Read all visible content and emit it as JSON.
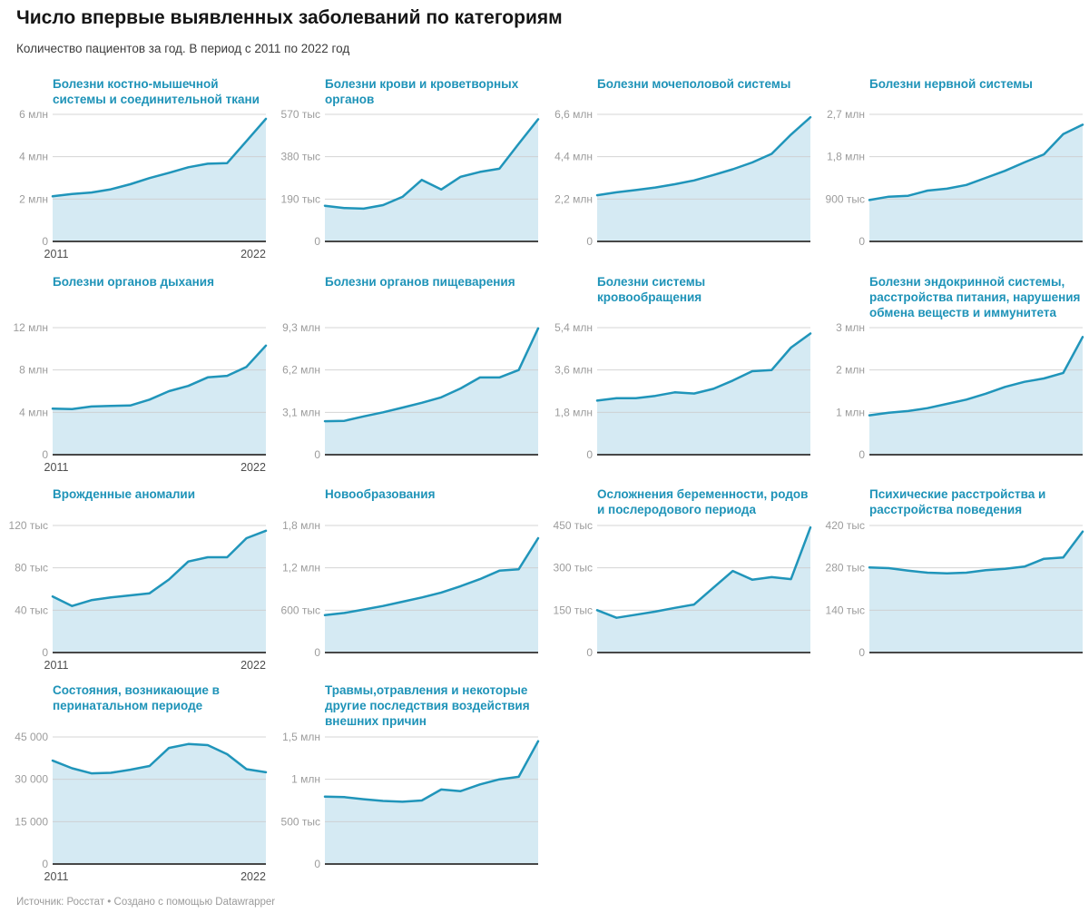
{
  "header": {
    "title": "Число впервые выявленных заболеваний по категориям",
    "subtitle": "Количество пациентов за год. В период с 2011 по 2022 год"
  },
  "footer": {
    "source": "Источник: Росстат • Создано с помощью Datawrapper"
  },
  "colors": {
    "line": "#2095ba",
    "area": "#d5eaf3",
    "gridline": "#cccccc",
    "baseline": "#474747",
    "title_accent": "#1e93b8"
  },
  "chart_data": {
    "type": "area",
    "x": [
      2011,
      2012,
      2013,
      2014,
      2015,
      2016,
      2017,
      2018,
      2019,
      2020,
      2021,
      2022
    ],
    "x_axis_labels": [
      "2011",
      "2022"
    ],
    "grid": true,
    "charts": [
      {
        "title": "Болезни костно-мышечной системы и соединительной ткани",
        "ymax": 6000000,
        "ytick_labels": [
          "6 млн",
          "4 млн",
          "2 млн",
          "0"
        ],
        "values": [
          2130000,
          2240000,
          2310000,
          2460000,
          2700000,
          2990000,
          3240000,
          3500000,
          3670000,
          3700000,
          4740000,
          5790000
        ],
        "x_labels": true
      },
      {
        "title": "Болезни крови и кроветворных органов",
        "ymax": 570000,
        "ytick_labels": [
          "570 тыс",
          "380 тыс",
          "190 тыс",
          "0"
        ],
        "values": [
          160000,
          150000,
          147000,
          163000,
          200000,
          276000,
          233000,
          290000,
          312000,
          326000,
          438000,
          548000
        ],
        "x_labels": false
      },
      {
        "title": "Болезни мочеполовой системы",
        "ymax": 6600000,
        "ytick_labels": [
          "6,6 млн",
          "4,4 млн",
          "2,2 млн",
          "0"
        ],
        "values": [
          2400000,
          2550000,
          2670000,
          2800000,
          2970000,
          3170000,
          3450000,
          3750000,
          4100000,
          4550000,
          5550000,
          6450000
        ],
        "x_labels": false
      },
      {
        "title": "Болезни нервной системы",
        "ymax": 2700000,
        "ytick_labels": [
          "2,7 млн",
          "1,8 млн",
          "900 тыс",
          "0"
        ],
        "values": [
          880000,
          950000,
          970000,
          1080000,
          1120000,
          1200000,
          1350000,
          1500000,
          1680000,
          1850000,
          2280000,
          2480000
        ],
        "x_labels": false
      },
      {
        "title": "Болезни органов дыхания",
        "ymax": 12000000,
        "ytick_labels": [
          "12 млн",
          "8 млн",
          "4 млн",
          "0"
        ],
        "values": [
          4350000,
          4300000,
          4550000,
          4600000,
          4650000,
          5200000,
          6000000,
          6500000,
          7300000,
          7450000,
          8300000,
          10300000
        ],
        "x_labels": true
      },
      {
        "title": "Болезни органов пищеварения",
        "ymax": 9300000,
        "ytick_labels": [
          "9,3 млн",
          "6,2 млн",
          "3,1 млн",
          "0"
        ],
        "values": [
          2450000,
          2480000,
          2800000,
          3100000,
          3450000,
          3800000,
          4200000,
          4850000,
          5650000,
          5650000,
          6200000,
          9250000
        ],
        "x_labels": false
      },
      {
        "title": "Болезни системы кровообращения",
        "ymax": 5400000,
        "ytick_labels": [
          "5,4 млн",
          "3,6 млн",
          "1,8 млн",
          "0"
        ],
        "values": [
          2300000,
          2400000,
          2400000,
          2500000,
          2650000,
          2600000,
          2800000,
          3150000,
          3550000,
          3600000,
          4550000,
          5150000
        ],
        "x_labels": false
      },
      {
        "title": "Болезни эндокринной системы, расстройства питания, нарушения обмена веществ и иммунитета",
        "ymax": 3000000,
        "ytick_labels": [
          "3 млн",
          "2 млн",
          "1 млн",
          "0"
        ],
        "values": [
          930000,
          990000,
          1030000,
          1100000,
          1200000,
          1300000,
          1440000,
          1600000,
          1720000,
          1800000,
          1930000,
          2780000
        ],
        "x_labels": false
      },
      {
        "title": "Врожденные аномалии",
        "ymax": 120000,
        "ytick_labels": [
          "120 тыс",
          "80 тыс",
          "40 тыс",
          "0"
        ],
        "values": [
          53000,
          44000,
          49500,
          52000,
          54000,
          56000,
          69000,
          86000,
          90000,
          90000,
          108000,
          115000
        ],
        "x_labels": true
      },
      {
        "title": "Новообразования",
        "ymax": 1800000,
        "ytick_labels": [
          "1,8 млн",
          "1,2 млн",
          "600 тыс",
          "0"
        ],
        "values": [
          530000,
          560000,
          610000,
          660000,
          720000,
          780000,
          850000,
          940000,
          1040000,
          1160000,
          1180000,
          1620000
        ],
        "x_labels": false
      },
      {
        "title": "Осложнения беременности, родов и послеродового периода",
        "ymax": 450000,
        "ytick_labels": [
          "450 тыс",
          "300 тыс",
          "150 тыс",
          "0"
        ],
        "values": [
          150000,
          123000,
          134000,
          145000,
          158000,
          170000,
          230000,
          289000,
          258000,
          267000,
          260000,
          443000
        ],
        "x_labels": false
      },
      {
        "title": "Психические расстройства и расстройства поведения",
        "ymax": 420000,
        "ytick_labels": [
          "420 тыс",
          "280 тыс",
          "140 тыс",
          "0"
        ],
        "values": [
          281000,
          279000,
          271000,
          264000,
          262000,
          264000,
          272000,
          277000,
          284000,
          310000,
          314000,
          400000
        ],
        "x_labels": false
      },
      {
        "title": "Состояния, возникающие в перинатальном периоде",
        "ymax": 45000,
        "ytick_labels": [
          "45 000",
          "30 000",
          "15 000",
          "0"
        ],
        "values": [
          36600,
          33900,
          32100,
          32300,
          33400,
          34700,
          41100,
          42500,
          42100,
          38900,
          33600,
          32500
        ],
        "x_labels": true
      },
      {
        "title": "Травмы,отравления и некоторые другие последствия воздействия внешних причин",
        "ymax": 1500000,
        "ytick_labels": [
          "1,5 млн",
          "1 млн",
          "500 тыс",
          "0"
        ],
        "values": [
          795000,
          790000,
          765000,
          745000,
          735000,
          750000,
          880000,
          860000,
          940000,
          1000000,
          1030000,
          1450000
        ],
        "x_labels": false
      }
    ]
  }
}
